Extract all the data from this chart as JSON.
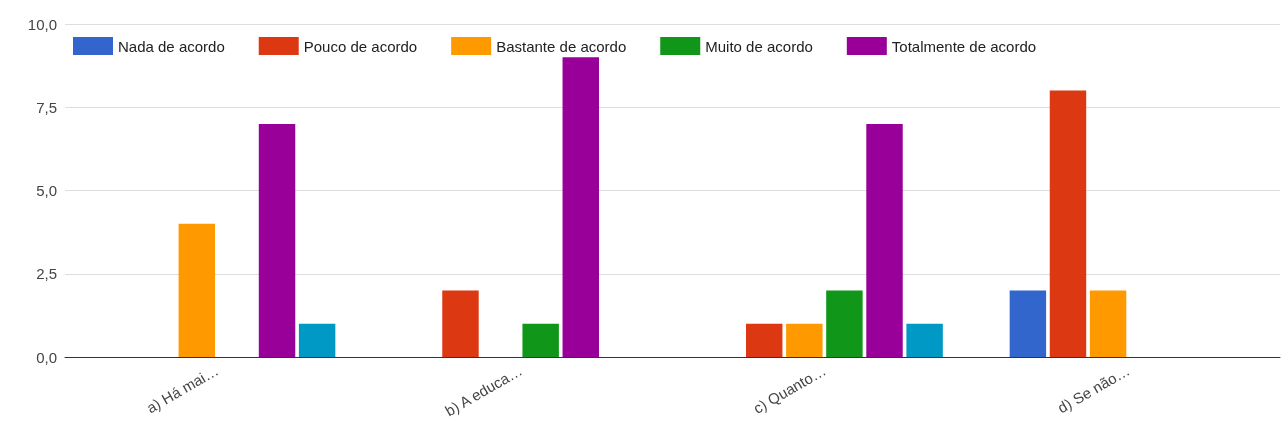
{
  "chart_data": {
    "type": "bar",
    "categories": [
      "a) Há mai…",
      "b) A educa…",
      "c) Quanto…",
      "d) Se não…"
    ],
    "series": [
      {
        "name": "Nada de acordo",
        "color": "#3366cc",
        "values": [
          0,
          0,
          0,
          2
        ]
      },
      {
        "name": "Pouco de acordo",
        "color": "#dc3912",
        "values": [
          0,
          2,
          1,
          8
        ]
      },
      {
        "name": "Bastante de acordo",
        "color": "#ff9900",
        "values": [
          4,
          0,
          1,
          2
        ]
      },
      {
        "name": "Muito de acordo",
        "color": "#109618",
        "values": [
          0,
          1,
          2,
          0
        ]
      },
      {
        "name": "Totalmente de acordo",
        "color": "#990099",
        "values": [
          7,
          9,
          7,
          0
        ]
      },
      {
        "color": "#0099c6",
        "values": [
          1,
          0,
          1,
          0
        ]
      }
    ],
    "ylim": [
      0,
      10
    ],
    "yticks": [
      {
        "value": 0,
        "label": "0,0"
      },
      {
        "value": 2.5,
        "label": "2,5"
      },
      {
        "value": 5,
        "label": "5,0"
      },
      {
        "value": 7.5,
        "label": "7,5"
      },
      {
        "value": 10,
        "label": "10,0"
      }
    ],
    "grid": "y",
    "legend": "top left"
  }
}
